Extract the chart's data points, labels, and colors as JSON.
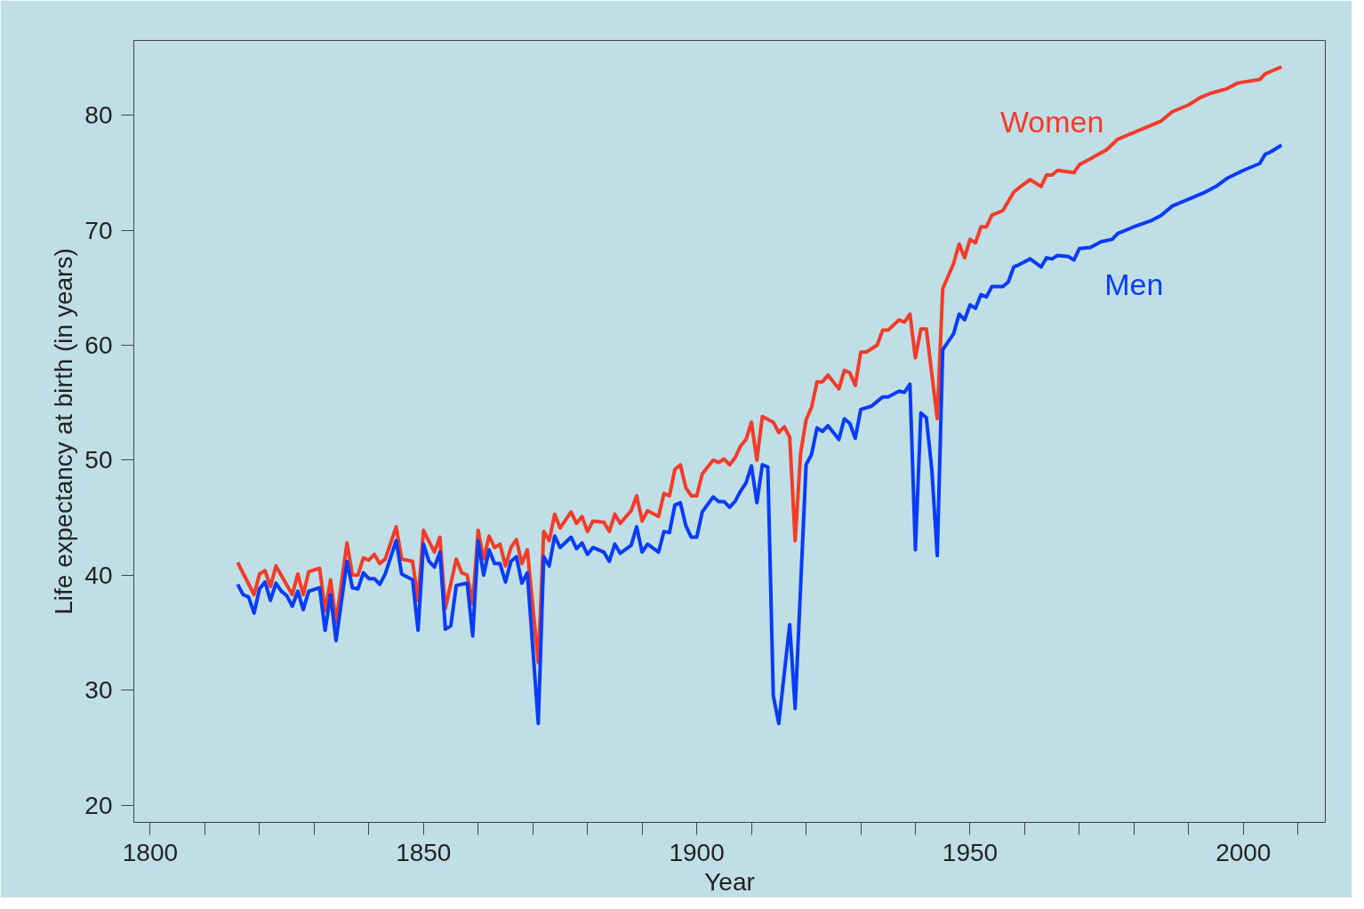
{
  "chart_data": {
    "type": "line",
    "xlabel": "Year",
    "ylabel": "Life expectancy at birth (in years)",
    "xlim": [
      1797,
      2015
    ],
    "ylim": [
      18.5,
      86.5
    ],
    "xticks": [
      1800,
      {
        "value": 1810,
        "label": null
      },
      {
        "value": 1820,
        "label": null
      },
      {
        "value": 1830,
        "label": null
      },
      {
        "value": 1840,
        "label": null
      },
      1850,
      {
        "value": 1860,
        "label": null
      },
      {
        "value": 1870,
        "label": null
      },
      {
        "value": 1880,
        "label": null
      },
      {
        "value": 1890,
        "label": null
      },
      1900,
      {
        "value": 1910,
        "label": null
      },
      {
        "value": 1920,
        "label": null
      },
      {
        "value": 1930,
        "label": null
      },
      {
        "value": 1940,
        "label": null
      },
      1950,
      {
        "value": 1960,
        "label": null
      },
      {
        "value": 1970,
        "label": null
      },
      {
        "value": 1980,
        "label": null
      },
      {
        "value": 1990,
        "label": null
      },
      2000,
      {
        "value": 2010,
        "label": null
      }
    ],
    "yticks": [
      20,
      30,
      40,
      50,
      60,
      70,
      80
    ],
    "grid": false,
    "legend": false,
    "line_style": "solid",
    "marker": "none",
    "series": [
      {
        "name": "Women",
        "color": "#f03c28",
        "x": [
          1816,
          1819,
          1820,
          1821,
          1822,
          1823,
          1826,
          1827,
          1828,
          1829,
          1831,
          1832,
          1833,
          1834,
          1836,
          1837,
          1838,
          1839,
          1840,
          1841,
          1842,
          1843,
          1845,
          1846,
          1848,
          1849,
          1850,
          1852,
          1853,
          1854,
          1856,
          1857,
          1858,
          1859,
          1860,
          1861,
          1862,
          1863,
          1864,
          1865,
          1866,
          1867,
          1868,
          1869,
          1871,
          1872,
          1873,
          1874,
          1875,
          1877,
          1878,
          1879,
          1880,
          1881,
          1883,
          1884,
          1885,
          1886,
          1888,
          1889,
          1890,
          1891,
          1893,
          1894,
          1895,
          1896,
          1897,
          1898,
          1899,
          1900,
          1901,
          1903,
          1904,
          1905,
          1906,
          1907,
          1908,
          1909,
          1910,
          1911,
          1912,
          1914,
          1915,
          1916,
          1917,
          1918,
          1919,
          1920,
          1921,
          1922,
          1923,
          1924,
          1926,
          1927,
          1928,
          1929,
          1930,
          1931,
          1933,
          1934,
          1935,
          1937,
          1938,
          1939,
          1940,
          1941,
          1942,
          1944,
          1945,
          1947,
          1948,
          1949,
          1950,
          1951,
          1952,
          1953,
          1954,
          1956,
          1958,
          1959,
          1961,
          1963,
          1964,
          1965,
          1966,
          1969,
          1970,
          1972,
          1975,
          1977,
          1980,
          1982,
          1985,
          1987,
          1990,
          1992,
          1994,
          1997,
          1999,
          2003,
          2004,
          2007
        ],
        "values": [
          41.1,
          38.3,
          40.1,
          40.4,
          39.0,
          40.8,
          38.3,
          40.1,
          38.3,
          40.3,
          40.6,
          36.9,
          39.6,
          35.9,
          42.8,
          40.0,
          40.0,
          41.5,
          41.3,
          41.8,
          41.0,
          41.4,
          44.2,
          41.4,
          41.2,
          37.8,
          43.9,
          42.0,
          43.3,
          37.1,
          41.4,
          40.2,
          40.0,
          37.5,
          43.9,
          41.4,
          43.4,
          42.4,
          42.7,
          40.8,
          42.4,
          43.1,
          41.0,
          42.2,
          32.4,
          43.8,
          43.0,
          45.3,
          44.1,
          45.5,
          44.5,
          45.1,
          43.8,
          44.7,
          44.6,
          43.8,
          45.3,
          44.5,
          45.6,
          46.9,
          44.7,
          45.6,
          45.1,
          47.1,
          46.9,
          49.2,
          49.6,
          47.6,
          46.9,
          46.9,
          48.8,
          50.0,
          49.8,
          50.1,
          49.6,
          50.2,
          51.2,
          51.8,
          53.3,
          50.0,
          53.8,
          53.3,
          52.4,
          52.9,
          52.0,
          43.0,
          50.6,
          53.5,
          54.6,
          56.8,
          56.8,
          57.4,
          56.2,
          57.8,
          57.6,
          56.5,
          59.4,
          59.4,
          60.0,
          61.3,
          61.3,
          62.2,
          62.0,
          62.7,
          58.9,
          61.4,
          61.4,
          53.6,
          64.9,
          67.1,
          68.8,
          67.6,
          69.2,
          68.9,
          70.3,
          70.3,
          71.3,
          71.7,
          73.3,
          73.7,
          74.4,
          73.8,
          74.8,
          74.8,
          75.2,
          75.0,
          75.7,
          76.2,
          77.0,
          77.9,
          78.5,
          78.9,
          79.5,
          80.3,
          80.9,
          81.5,
          81.9,
          82.3,
          82.8,
          83.1,
          83.6,
          84.2
        ]
      },
      {
        "name": "Men",
        "color": "#0a3cf5",
        "x": [
          1816,
          1817,
          1818,
          1819,
          1820,
          1821,
          1822,
          1823,
          1824,
          1825,
          1826,
          1827,
          1828,
          1829,
          1831,
          1832,
          1833,
          1834,
          1836,
          1837,
          1838,
          1839,
          1840,
          1841,
          1842,
          1843,
          1845,
          1846,
          1848,
          1849,
          1850,
          1851,
          1852,
          1853,
          1854,
          1855,
          1856,
          1858,
          1859,
          1860,
          1861,
          1862,
          1863,
          1864,
          1865,
          1866,
          1867,
          1868,
          1869,
          1871,
          1872,
          1873,
          1874,
          1875,
          1877,
          1878,
          1879,
          1880,
          1881,
          1883,
          1884,
          1885,
          1886,
          1888,
          1889,
          1890,
          1891,
          1893,
          1894,
          1895,
          1896,
          1897,
          1898,
          1899,
          1900,
          1901,
          1903,
          1904,
          1905,
          1906,
          1907,
          1908,
          1909,
          1910,
          1911,
          1912,
          1913,
          1914,
          1915,
          1917,
          1918,
          1920,
          1921,
          1922,
          1923,
          1924,
          1926,
          1927,
          1928,
          1929,
          1930,
          1932,
          1933,
          1934,
          1935,
          1937,
          1938,
          1939,
          1940,
          1941,
          1942,
          1943,
          1944,
          1945,
          1947,
          1948,
          1949,
          1950,
          1951,
          1952,
          1953,
          1954,
          1956,
          1957,
          1958,
          1959,
          1961,
          1963,
          1964,
          1965,
          1966,
          1968,
          1969,
          1970,
          1972,
          1974,
          1976,
          1977,
          1980,
          1983,
          1985,
          1987,
          1990,
          1993,
          1995,
          1997,
          2000,
          2003,
          2004,
          2005,
          2007
        ],
        "values": [
          39.2,
          38.3,
          38.1,
          36.7,
          38.8,
          39.4,
          37.8,
          39.3,
          38.6,
          38.2,
          37.3,
          38.6,
          37.0,
          38.6,
          38.9,
          35.2,
          38.3,
          34.3,
          41.2,
          38.9,
          38.8,
          40.2,
          39.7,
          39.7,
          39.2,
          40.1,
          43.0,
          40.1,
          39.6,
          35.2,
          42.7,
          41.2,
          40.7,
          42.0,
          35.3,
          35.6,
          39.1,
          39.3,
          34.7,
          43.0,
          40.0,
          42.2,
          41.0,
          41.0,
          39.4,
          41.2,
          41.6,
          39.3,
          40.2,
          27.1,
          41.6,
          40.8,
          43.4,
          42.4,
          43.3,
          42.3,
          42.8,
          41.8,
          42.4,
          42.0,
          41.2,
          42.7,
          41.9,
          42.6,
          44.2,
          42.0,
          42.7,
          42.0,
          43.8,
          43.7,
          46.1,
          46.3,
          44.3,
          43.3,
          43.3,
          45.5,
          46.8,
          46.4,
          46.4,
          45.9,
          46.4,
          47.3,
          48.0,
          49.5,
          46.3,
          49.6,
          49.4,
          29.5,
          27.1,
          35.7,
          28.4,
          49.6,
          50.5,
          52.8,
          52.5,
          53.0,
          51.8,
          53.6,
          53.2,
          51.9,
          54.4,
          54.7,
          55.1,
          55.5,
          55.5,
          56.0,
          55.9,
          56.6,
          42.2,
          54.1,
          53.7,
          49.2,
          41.7,
          59.6,
          61.0,
          62.7,
          62.2,
          63.5,
          63.2,
          64.4,
          64.2,
          65.1,
          65.1,
          65.5,
          66.8,
          67.0,
          67.5,
          66.8,
          67.6,
          67.5,
          67.8,
          67.7,
          67.4,
          68.4,
          68.5,
          69.0,
          69.2,
          69.7,
          70.3,
          70.8,
          71.3,
          72.1,
          72.7,
          73.3,
          73.8,
          74.5,
          75.2,
          75.8,
          76.6,
          76.8,
          77.4
        ]
      }
    ]
  }
}
